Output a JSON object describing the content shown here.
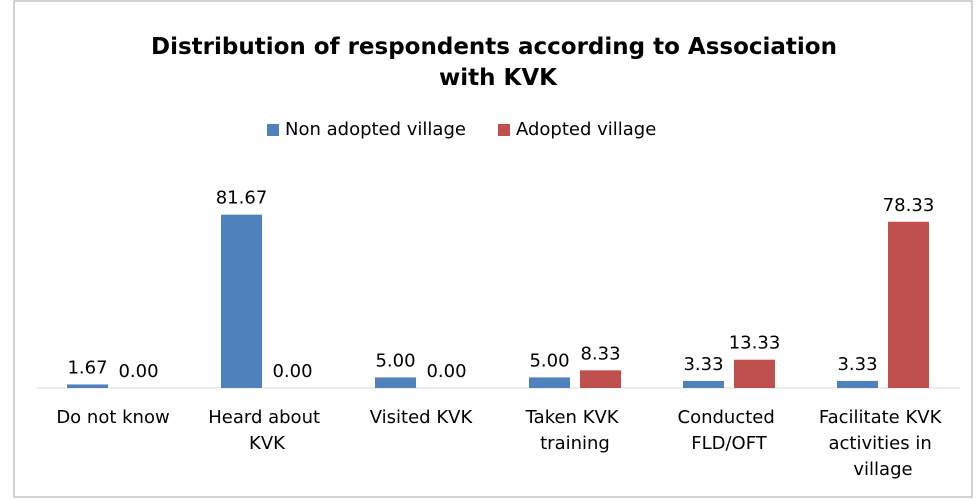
{
  "chart_data": {
    "type": "bar",
    "title": "Distribution of respondents according to Association with KVK",
    "categories": [
      "Do not know",
      "Heard about KVK",
      "Visited KVK",
      "Taken KVK training",
      "Conducted FLD/OFT",
      "Facilitate KVK activities in village"
    ],
    "series": [
      {
        "name": "Non adopted village",
        "color": "#4f81bd",
        "values": [
          1.67,
          81.67,
          5,
          5,
          3.33,
          3.33
        ],
        "value_labels": [
          "1.67",
          "81.67",
          "5.00",
          "5.00",
          "3.33",
          "3.33"
        ]
      },
      {
        "name": "Adopted village",
        "color": "#c0504d",
        "values": [
          0,
          0,
          0,
          8.33,
          13.33,
          78.33
        ],
        "value_labels": [
          "0.00",
          "0.00",
          "0.00",
          "8.33",
          "13.33",
          "78.33"
        ]
      }
    ],
    "ylim": [
      0,
      90
    ],
    "legend": "top"
  }
}
